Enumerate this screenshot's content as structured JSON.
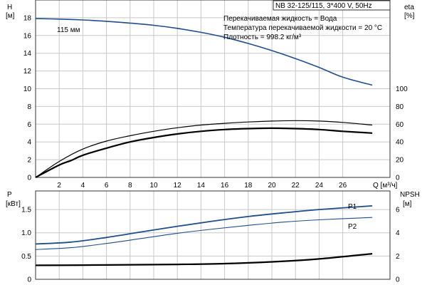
{
  "chart_data": [
    {
      "type": "line",
      "panel": "head-efficiency",
      "header": "NB 32-125/115, 3*400 V, 50Hz",
      "info": [
        "Перекачиваемая жидкость = Вода",
        "Температура перекачиваемой жидкости = 20 °C",
        "Плотность = 998.2 кг/м³"
      ],
      "xlabel": "Q [м³/ч]",
      "xlim": [
        0,
        30
      ],
      "xticks": [
        2,
        4,
        6,
        8,
        10,
        12,
        14,
        16,
        18,
        20,
        22,
        24,
        26
      ],
      "ylabel_left": [
        "H",
        "[м]"
      ],
      "ylim_left": [
        0,
        20
      ],
      "yticks_left": [
        0,
        2,
        4,
        6,
        8,
        10,
        12,
        14,
        16,
        18
      ],
      "ylabel_right": [
        "eta",
        "[%]"
      ],
      "ylim_right": [
        0,
        200
      ],
      "yticks_right": [
        0,
        20,
        40,
        60,
        80,
        100
      ],
      "grid": true,
      "series": [
        {
          "name": "115 мм",
          "axis": "left",
          "color": "#1f4e8c",
          "x": [
            0,
            2,
            4,
            6,
            8,
            10,
            12,
            14,
            16,
            18,
            20,
            22,
            24,
            26,
            28.5
          ],
          "y": [
            17.9,
            17.85,
            17.75,
            17.6,
            17.4,
            17.15,
            16.8,
            16.35,
            15.8,
            15.1,
            14.3,
            13.4,
            12.4,
            11.3,
            10.4
          ]
        },
        {
          "axis": "right",
          "color": "#000000",
          "x": [
            0,
            2,
            3,
            4,
            6,
            8,
            10,
            12,
            14,
            16,
            18,
            20,
            22,
            24,
            26,
            28.5
          ],
          "y": [
            0,
            14,
            19,
            25,
            33,
            40,
            45,
            49,
            52,
            54,
            55,
            55.5,
            55,
            54,
            52,
            50
          ]
        },
        {
          "axis": "right",
          "color": "#000000",
          "x": [
            0,
            2,
            4,
            6,
            8,
            10,
            12,
            14,
            16,
            18,
            20,
            22,
            24,
            26,
            28.5
          ],
          "y": [
            0,
            18,
            32,
            41,
            47,
            52,
            56,
            59,
            61,
            62.5,
            63.5,
            64,
            63.5,
            62,
            59
          ]
        }
      ]
    },
    {
      "type": "line",
      "panel": "power-npsh",
      "xlim": [
        0,
        30
      ],
      "ylabel_left": [
        "P",
        "[кВт]"
      ],
      "ylim_left": [
        0,
        1.9
      ],
      "yticks_left": [
        "0",
        "0.5",
        "1.0",
        "1.5"
      ],
      "ylabel_right": [
        "NPSH",
        "[м]"
      ],
      "ylim_right": [
        0,
        7.6
      ],
      "yticks_right": [
        0,
        2,
        4,
        6
      ],
      "grid": true,
      "series": [
        {
          "name": "P1",
          "axis": "left",
          "color": "#1f4e8c",
          "x": [
            0,
            3,
            6,
            9,
            12,
            15,
            18,
            21,
            24,
            28.5
          ],
          "y": [
            0.76,
            0.8,
            0.9,
            1.02,
            1.14,
            1.25,
            1.35,
            1.43,
            1.5,
            1.58
          ]
        },
        {
          "name": "P2",
          "axis": "left",
          "color": "#1f4e8c",
          "x": [
            0,
            3,
            6,
            9,
            12,
            15,
            18,
            21,
            24,
            28.5
          ],
          "y": [
            0.64,
            0.68,
            0.77,
            0.88,
            0.99,
            1.08,
            1.16,
            1.23,
            1.28,
            1.33
          ]
        },
        {
          "axis": "right",
          "color": "#000000",
          "x": [
            0,
            4,
            8,
            12,
            16,
            20,
            24,
            28.5
          ],
          "y": [
            1.2,
            1.22,
            1.25,
            1.28,
            1.35,
            1.5,
            1.75,
            2.2
          ]
        }
      ]
    }
  ]
}
